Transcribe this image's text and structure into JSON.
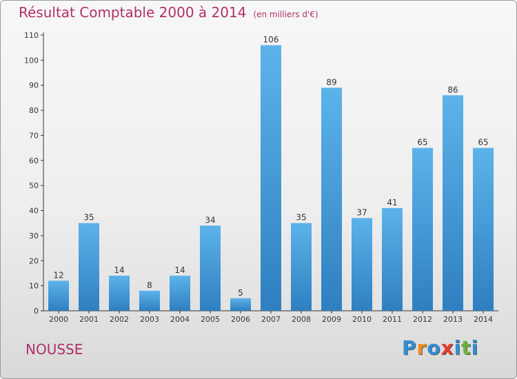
{
  "title": "Résultat Comptable 2000 à 2014",
  "unit": "(en milliers d'€)",
  "town": "NOUSSE",
  "logo": {
    "letters": [
      "P",
      "r",
      "o",
      "x",
      "i",
      "t",
      "i"
    ],
    "colors": [
      "#2e8fd6",
      "#f28c1a",
      "#2e8fd6",
      "#e83a2e",
      "#2e8fd6",
      "#6cb33e",
      "#2e8fd6"
    ]
  },
  "colors": {
    "bar": "#4aa3e0",
    "bar_dark": "#2f7fc0",
    "title": "#b0306a"
  },
  "chart_data": {
    "type": "bar",
    "title": "Résultat Comptable 2000 à 2014",
    "subtitle": "(en milliers d'€)",
    "categories": [
      "2000",
      "2001",
      "2002",
      "2003",
      "2004",
      "2005",
      "2006",
      "2007",
      "2008",
      "2009",
      "2010",
      "2011",
      "2012",
      "2013",
      "2014"
    ],
    "values": [
      12,
      35,
      14,
      8,
      14,
      34,
      5,
      106,
      35,
      89,
      37,
      41,
      65,
      86,
      65
    ],
    "ylim": [
      0,
      110
    ],
    "yticks": [
      0,
      10,
      20,
      30,
      40,
      50,
      60,
      70,
      80,
      90,
      100,
      110
    ],
    "grid": false
  }
}
